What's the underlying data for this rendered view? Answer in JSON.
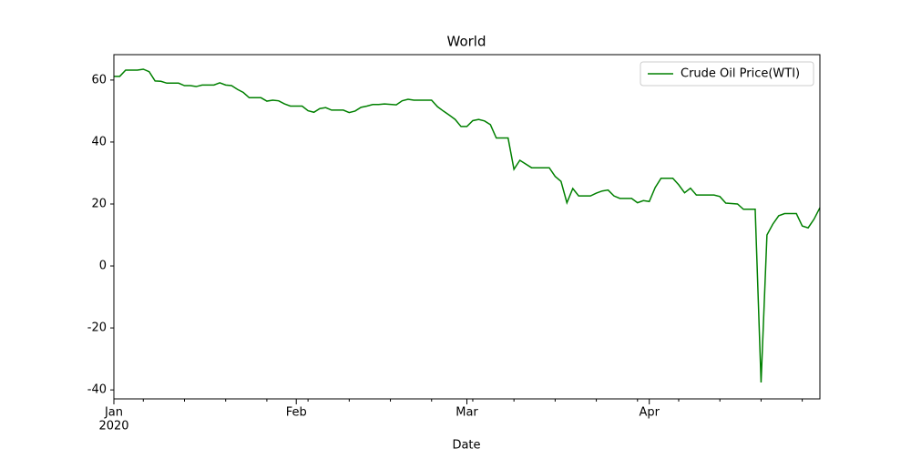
{
  "chart_data": {
    "type": "line",
    "title": "World",
    "xlabel": "Date",
    "x": [
      "2020-01-01",
      "2020-01-02",
      "2020-01-03",
      "2020-01-05",
      "2020-01-06",
      "2020-01-07",
      "2020-01-08",
      "2020-01-09",
      "2020-01-10",
      "2020-01-12",
      "2020-01-13",
      "2020-01-14",
      "2020-01-15",
      "2020-01-16",
      "2020-01-18",
      "2020-01-19",
      "2020-01-20",
      "2020-01-21",
      "2020-01-22",
      "2020-01-23",
      "2020-01-24",
      "2020-01-26",
      "2020-01-27",
      "2020-01-28",
      "2020-01-29",
      "2020-01-30",
      "2020-01-31",
      "2020-02-02",
      "2020-02-03",
      "2020-02-04",
      "2020-02-05",
      "2020-02-06",
      "2020-02-07",
      "2020-02-09",
      "2020-02-10",
      "2020-02-11",
      "2020-02-12",
      "2020-02-13",
      "2020-02-14",
      "2020-02-15",
      "2020-02-16",
      "2020-02-18",
      "2020-02-19",
      "2020-02-20",
      "2020-02-21",
      "2020-02-24",
      "2020-02-25",
      "2020-02-26",
      "2020-02-27",
      "2020-02-28",
      "2020-02-29",
      "2020-03-01",
      "2020-03-02",
      "2020-03-03",
      "2020-03-04",
      "2020-03-05",
      "2020-03-06",
      "2020-03-08",
      "2020-03-09",
      "2020-03-10",
      "2020-03-12",
      "2020-03-13",
      "2020-03-15",
      "2020-03-16",
      "2020-03-17",
      "2020-03-18",
      "2020-03-19",
      "2020-03-20",
      "2020-03-22",
      "2020-03-23",
      "2020-03-24",
      "2020-03-25",
      "2020-03-26",
      "2020-03-27",
      "2020-03-29",
      "2020-03-30",
      "2020-03-31",
      "2020-04-01",
      "2020-04-02",
      "2020-04-03",
      "2020-04-05",
      "2020-04-06",
      "2020-04-07",
      "2020-04-08",
      "2020-04-09",
      "2020-04-12",
      "2020-04-13",
      "2020-04-14",
      "2020-04-16",
      "2020-04-17",
      "2020-04-19",
      "2020-04-20",
      "2020-04-21",
      "2020-04-22",
      "2020-04-23",
      "2020-04-24",
      "2020-04-26",
      "2020-04-27",
      "2020-04-28",
      "2020-04-29",
      "2020-04-30"
    ],
    "series": [
      {
        "name": "Crude Oil Price(WTI)",
        "color": "#008000",
        "values": [
          61.2,
          61.2,
          63.2,
          63.2,
          63.5,
          62.7,
          59.7,
          59.6,
          59.0,
          59.0,
          58.2,
          58.2,
          57.9,
          58.4,
          58.4,
          59.1,
          58.4,
          58.2,
          57.0,
          56.0,
          54.3,
          54.3,
          53.2,
          53.5,
          53.3,
          52.3,
          51.6,
          51.6,
          50.1,
          49.6,
          50.8,
          51.1,
          50.3,
          50.3,
          49.5,
          50.0,
          51.2,
          51.6,
          52.1,
          52.1,
          52.3,
          52.0,
          53.3,
          53.8,
          53.5,
          53.5,
          51.4,
          50.0,
          48.7,
          47.3,
          45.0,
          45.0,
          46.9,
          47.3,
          46.8,
          45.6,
          41.3,
          41.3,
          31.2,
          34.1,
          31.7,
          31.7,
          31.7,
          28.9,
          27.3,
          20.4,
          25.0,
          22.6,
          22.6,
          23.5,
          24.2,
          24.5,
          22.6,
          21.8,
          21.8,
          20.4,
          21.1,
          20.8,
          25.3,
          28.3,
          28.3,
          26.2,
          23.6,
          25.1,
          22.9,
          22.9,
          22.4,
          20.3,
          20.0,
          18.3,
          18.3,
          -37.6,
          10.0,
          13.5,
          16.2,
          16.9,
          16.9,
          12.9,
          12.3,
          15.1,
          18.8
        ]
      }
    ],
    "xlim": [
      "2020-01-01",
      "2020-04-30"
    ],
    "xticks": [
      {
        "value": "2020-01-01",
        "label": "Jan"
      },
      {
        "value": "2020-02-01",
        "label": "Feb"
      },
      {
        "value": "2020-03-01",
        "label": "Mar"
      },
      {
        "value": "2020-04-01",
        "label": "Apr"
      }
    ],
    "xtick_year": "2020",
    "xminorticks": [
      "2020-01-06",
      "2020-01-13",
      "2020-01-20",
      "2020-01-27",
      "2020-02-03",
      "2020-02-10",
      "2020-02-17",
      "2020-02-24",
      "2020-03-02",
      "2020-03-09",
      "2020-03-16",
      "2020-03-23",
      "2020-03-30",
      "2020-04-06",
      "2020-04-13",
      "2020-04-20",
      "2020-04-27"
    ],
    "ylim": [
      -42.9,
      68.2
    ],
    "yticks": [
      -40,
      -20,
      0,
      20,
      40,
      60
    ],
    "grid": false,
    "legend": "upper right"
  }
}
